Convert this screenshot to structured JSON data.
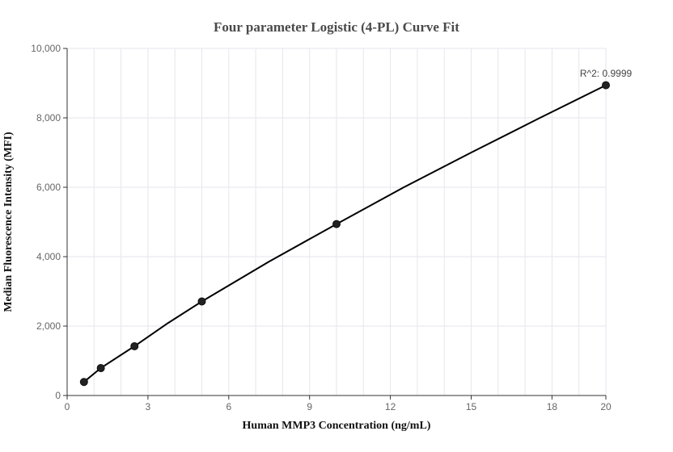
{
  "chart_data": {
    "type": "scatter",
    "title": "Four parameter Logistic (4-PL) Curve Fit",
    "xlabel": "Human MMP3 Concentration (ng/mL)",
    "ylabel": "Median Fluorescence Intensity (MFI)",
    "xlim": [
      0,
      20
    ],
    "ylim": [
      0,
      10000
    ],
    "x_ticks": [
      0,
      3,
      6,
      9,
      12,
      15,
      18,
      20
    ],
    "x_tick_labels": [
      "0",
      "3",
      "6",
      "9",
      "12",
      "15",
      "18",
      "20"
    ],
    "y_ticks": [
      0,
      2000,
      4000,
      6000,
      8000,
      10000
    ],
    "y_tick_labels": [
      "0",
      "2,000",
      "4,000",
      "6,000",
      "8,000",
      "10,000"
    ],
    "grid": true,
    "points": [
      {
        "x": 0.625,
        "y": 390
      },
      {
        "x": 1.25,
        "y": 790
      },
      {
        "x": 2.5,
        "y": 1420
      },
      {
        "x": 5,
        "y": 2710
      },
      {
        "x": 10,
        "y": 4940
      },
      {
        "x": 20,
        "y": 8940
      }
    ],
    "fit_curve": {
      "model": "4PL",
      "x": [
        0.625,
        1.25,
        2.5,
        3.75,
        5,
        7.5,
        10,
        12.5,
        15,
        17.5,
        20
      ],
      "y": [
        390,
        790,
        1420,
        2090,
        2710,
        3860,
        4940,
        6000,
        7000,
        7980,
        8940
      ]
    },
    "annotation": "R^2: 0.9999",
    "colors": {
      "points": "#222222",
      "curve": "#000000",
      "grid": "#e6e6ee",
      "axis": "#333333"
    }
  }
}
